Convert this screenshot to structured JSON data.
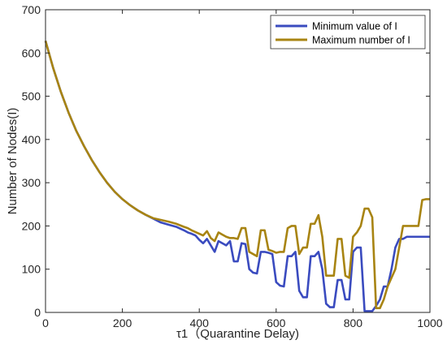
{
  "chart_data": {
    "type": "line",
    "title": "",
    "xlabel": "τ1（Quarantine Delay)",
    "ylabel": "Number of Nodes(I)",
    "xlim": [
      0,
      1000
    ],
    "ylim": [
      0,
      700
    ],
    "xticks": [
      0,
      200,
      400,
      600,
      800,
      1000
    ],
    "yticks": [
      0,
      100,
      200,
      300,
      400,
      500,
      600,
      700
    ],
    "grid": false,
    "legend_position": "top-right",
    "series": [
      {
        "name": "Minimum value of I",
        "color": "#3a4bbf",
        "x": [
          0,
          20,
          40,
          60,
          80,
          100,
          120,
          140,
          160,
          180,
          200,
          220,
          240,
          260,
          280,
          300,
          320,
          340,
          360,
          370,
          380,
          390,
          400,
          410,
          420,
          430,
          440,
          450,
          460,
          470,
          480,
          490,
          500,
          510,
          520,
          530,
          540,
          550,
          560,
          570,
          580,
          590,
          600,
          610,
          620,
          630,
          640,
          650,
          660,
          670,
          680,
          690,
          700,
          710,
          720,
          730,
          740,
          750,
          760,
          770,
          780,
          790,
          800,
          810,
          820,
          830,
          840,
          850,
          860,
          870,
          880,
          890,
          900,
          910,
          920,
          930,
          940,
          950,
          960,
          970,
          980,
          990,
          1000
        ],
        "y": [
          628,
          565,
          510,
          462,
          420,
          385,
          353,
          325,
          300,
          279,
          262,
          248,
          236,
          226,
          217,
          208,
          203,
          198,
          190,
          185,
          182,
          178,
          168,
          160,
          170,
          155,
          140,
          165,
          160,
          155,
          165,
          118,
          118,
          160,
          158,
          100,
          92,
          90,
          140,
          140,
          138,
          135,
          70,
          62,
          60,
          130,
          130,
          140,
          50,
          35,
          35,
          130,
          130,
          140,
          100,
          20,
          12,
          12,
          75,
          75,
          30,
          30,
          140,
          150,
          150,
          3,
          3,
          3,
          15,
          30,
          60,
          60,
          100,
          150,
          170,
          170,
          175,
          175,
          175,
          175,
          175,
          175,
          175
        ]
      },
      {
        "name": "Maximum number of I",
        "color": "#a88412",
        "x": [
          0,
          20,
          40,
          60,
          80,
          100,
          120,
          140,
          160,
          180,
          200,
          220,
          240,
          260,
          280,
          300,
          320,
          340,
          360,
          370,
          380,
          390,
          400,
          410,
          420,
          430,
          440,
          450,
          460,
          470,
          480,
          490,
          500,
          510,
          520,
          530,
          540,
          550,
          560,
          570,
          580,
          590,
          600,
          610,
          620,
          630,
          640,
          650,
          660,
          670,
          680,
          690,
          700,
          710,
          720,
          730,
          740,
          750,
          760,
          770,
          780,
          790,
          800,
          810,
          820,
          830,
          840,
          850,
          860,
          870,
          880,
          890,
          900,
          910,
          920,
          930,
          940,
          950,
          960,
          970,
          980,
          990,
          1000
        ],
        "y": [
          628,
          565,
          510,
          462,
          420,
          385,
          353,
          325,
          300,
          279,
          262,
          248,
          236,
          226,
          218,
          214,
          210,
          205,
          198,
          195,
          190,
          186,
          182,
          178,
          188,
          172,
          165,
          185,
          180,
          175,
          172,
          172,
          170,
          195,
          195,
          140,
          135,
          130,
          190,
          190,
          145,
          142,
          138,
          140,
          140,
          195,
          200,
          200,
          135,
          150,
          150,
          205,
          205,
          225,
          175,
          85,
          85,
          85,
          170,
          170,
          85,
          80,
          175,
          185,
          200,
          240,
          240,
          220,
          10,
          10,
          30,
          60,
          80,
          100,
          150,
          200,
          200,
          200,
          200,
          200,
          260,
          262,
          262
        ]
      }
    ]
  }
}
